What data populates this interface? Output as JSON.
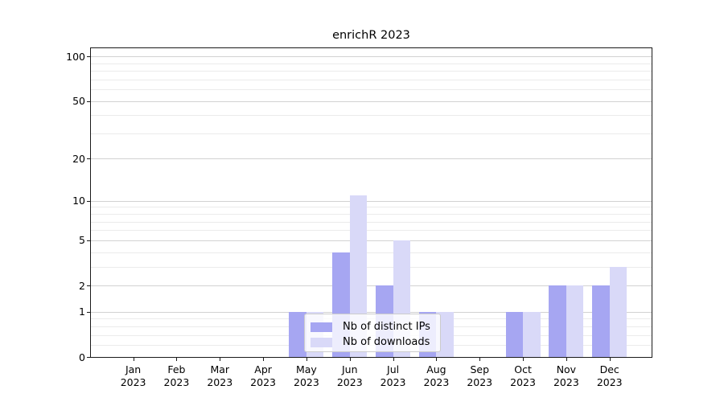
{
  "title": "enrichR 2023",
  "colors": {
    "spine": "#1a1a1a",
    "grid_major": "#d2d2d2",
    "grid_minor": "#ebebeb",
    "text": "#000000",
    "legend_border": "#cccccc"
  },
  "legend": {
    "entries": [
      {
        "label": "Nb of distinct IPs"
      },
      {
        "label": "Nb of downloads"
      }
    ]
  },
  "chart_data": {
    "type": "bar",
    "title": "enrichR 2023",
    "categories": [
      "Jan 2023",
      "Feb 2023",
      "Mar 2023",
      "Apr 2023",
      "May 2023",
      "Jun 2023",
      "Jul 2023",
      "Aug 2023",
      "Sep 2023",
      "Oct 2023",
      "Nov 2023",
      "Dec 2023"
    ],
    "series": [
      {
        "name": "Nb of distinct IPs",
        "color": "#a6a6f2",
        "values": [
          0,
          0,
          0,
          0,
          1,
          4,
          2,
          1,
          0,
          1,
          2,
          2
        ]
      },
      {
        "name": "Nb of downloads",
        "color": "#d9d9f8",
        "values": [
          0,
          0,
          0,
          0,
          1,
          11,
          5,
          1,
          0,
          1,
          2,
          3
        ]
      }
    ],
    "xlabel": "",
    "ylabel": "",
    "y_axis": {
      "scale": "log1p",
      "major_ticks": [
        0,
        1,
        2,
        5,
        10,
        20,
        50,
        100
      ],
      "minor_ticks": [
        0.2,
        0.4,
        0.6,
        0.8,
        3,
        4,
        6,
        7,
        8,
        9,
        30,
        40,
        60,
        70,
        80,
        90
      ],
      "ylim": [
        0,
        113
      ]
    },
    "grid": true,
    "legend_position": "lower center"
  }
}
